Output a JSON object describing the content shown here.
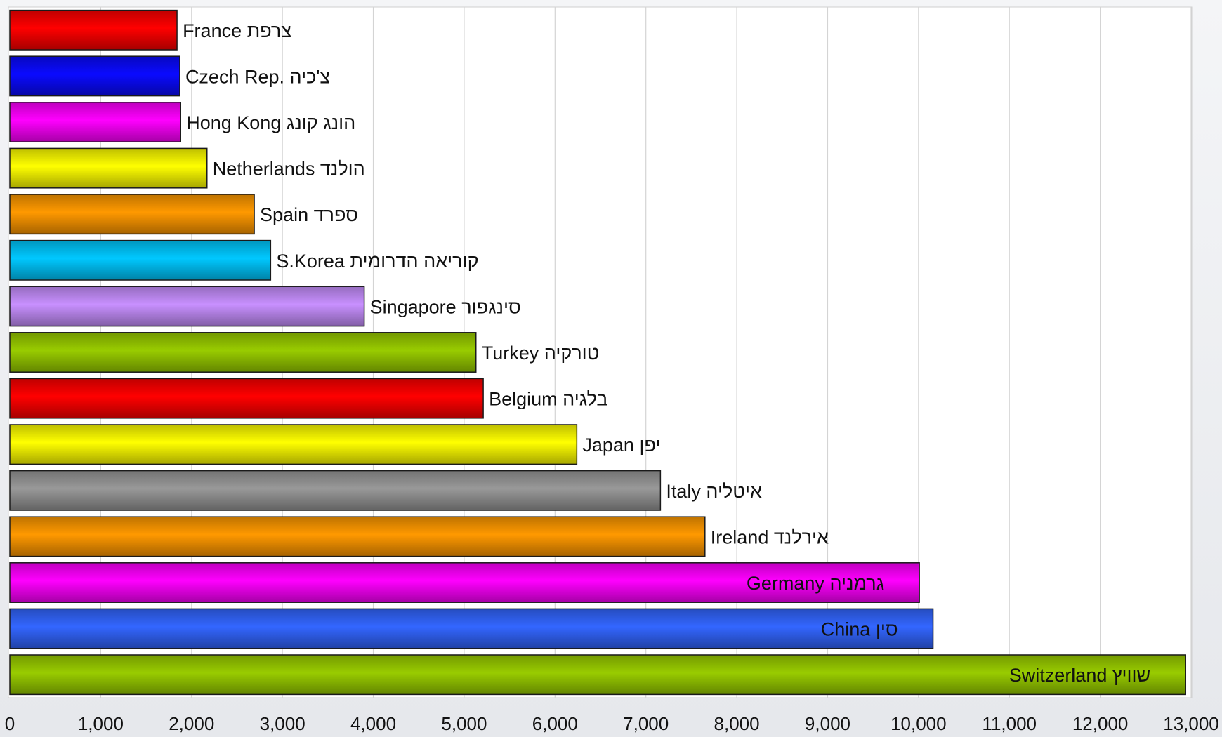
{
  "chart_data": {
    "type": "bar",
    "orientation": "horizontal",
    "title": "",
    "xlabel": "",
    "ylabel": "",
    "xlim": [
      0,
      13000
    ],
    "xticks": [
      0,
      1000,
      2000,
      3000,
      4000,
      5000,
      6000,
      7000,
      8000,
      9000,
      10000,
      11000,
      12000,
      13000
    ],
    "xtick_labels": [
      "0",
      "1,000",
      "2,000",
      "3,000",
      "4,000",
      "5,000",
      "6,000",
      "7,000",
      "8,000",
      "9,000",
      "10,000",
      "11,000",
      "12,000",
      "13,000"
    ],
    "grid": "vertical",
    "legend": "none",
    "bars": [
      {
        "label": "France  צרפת",
        "value": 1840,
        "color": "#ff0000"
      },
      {
        "label": "Czech Rep.  צ'כיה",
        "value": 1870,
        "color": "#0a0aff"
      },
      {
        "label": "Hong Kong הונג קונג",
        "value": 1880,
        "color": "#ff00ff"
      },
      {
        "label": "Netherlands  הולנד",
        "value": 2170,
        "color": "#ffff00"
      },
      {
        "label": "Spain ספרד",
        "value": 2690,
        "color": "#ff9900"
      },
      {
        "label": "S.Korea  קוריאה הדרומית",
        "value": 2870,
        "color": "#00c8ff"
      },
      {
        "label": "Singapore סינגפור",
        "value": 3900,
        "color": "#c890ff"
      },
      {
        "label": "Turkey   טורקיה",
        "value": 5130,
        "color": "#99cc00"
      },
      {
        "label": "Belgium בלגיה",
        "value": 5210,
        "color": "#ff0000"
      },
      {
        "label": "Japan   יפן",
        "value": 6240,
        "color": "#ffff00"
      },
      {
        "label": "Italy  איטליה",
        "value": 7160,
        "color": "#999999"
      },
      {
        "label": "Ireland אירלנד",
        "value": 7650,
        "color": "#ff9900"
      },
      {
        "label": "Germany   גרמניה",
        "value": 10010,
        "color": "#ff00ff"
      },
      {
        "label": "China  סין",
        "value": 10160,
        "color": "#3366ff"
      },
      {
        "label": "Switzerland  שוויץ",
        "value": 12940,
        "color": "#99cc00"
      }
    ]
  }
}
